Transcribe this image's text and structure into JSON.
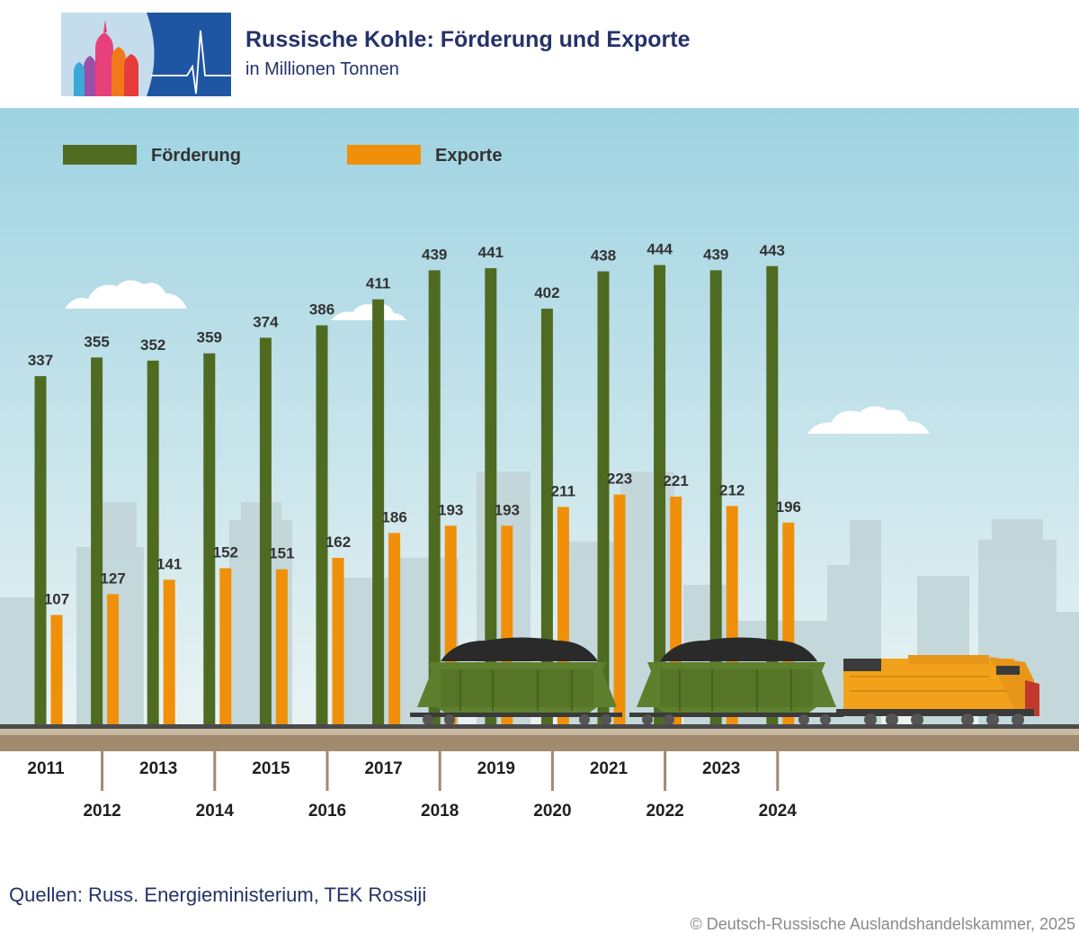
{
  "header": {
    "title": "Russische Kohle: Förderung und Exporte",
    "subtitle": "in Millionen Tonnen"
  },
  "footer": {
    "source": "Quellen: Russ. Energieministerium, TEK Rossiji",
    "copyright": "© Deutsch-Russische Auslandshandelskammer, 2025"
  },
  "colors": {
    "foerderung": "#4f6b22",
    "exporte": "#f0900a",
    "sky_top": "#9fd3e2",
    "sky_bottom": "#e9f2f3"
  },
  "chart_data": {
    "type": "bar",
    "title": "Russische Kohle: Förderung und Exporte",
    "subtitle": "in Millionen Tonnen",
    "categories": [
      "2011",
      "2012",
      "2013",
      "2014",
      "2015",
      "2016",
      "2017",
      "2018",
      "2019",
      "2020",
      "2021",
      "2022",
      "2023",
      "2024"
    ],
    "series": [
      {
        "name": "Förderung",
        "color": "#4f6b22",
        "values": [
          337,
          355,
          352,
          359,
          374,
          386,
          411,
          439,
          441,
          402,
          438,
          444,
          439,
          443
        ]
      },
      {
        "name": "Exporte",
        "color": "#f0900a",
        "values": [
          107,
          127,
          141,
          152,
          151,
          162,
          186,
          193,
          193,
          211,
          223,
          221,
          212,
          196
        ]
      }
    ],
    "ylim": [
      0,
      480
    ],
    "grid": false,
    "legend": "top-left"
  }
}
